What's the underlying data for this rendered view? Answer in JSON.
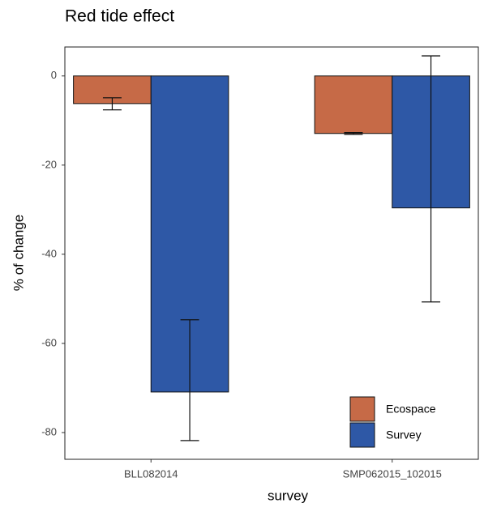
{
  "chart_data": {
    "type": "bar",
    "title": "Red tide effect",
    "x_label": "survey",
    "y_label": "% of change",
    "categories": [
      "BLL082014",
      "SMP062015_102015"
    ],
    "series": [
      {
        "name": "Ecospace",
        "color": "#c66a47",
        "values": [
          -6.2,
          -12.9
        ],
        "lower": [
          -7.6,
          -13.1
        ],
        "upper": [
          -4.9,
          -12.7
        ]
      },
      {
        "name": "Survey",
        "color": "#2e58a6",
        "values": [
          -70.9,
          -29.6
        ],
        "lower": [
          -81.8,
          -50.7
        ],
        "upper": [
          -54.7,
          4.5
        ]
      }
    ],
    "ylim": [
      -86,
      6.5
    ],
    "yticks": [
      0,
      -20,
      -40,
      -60,
      -80
    ],
    "grid": false,
    "legend": "bottom-right"
  }
}
